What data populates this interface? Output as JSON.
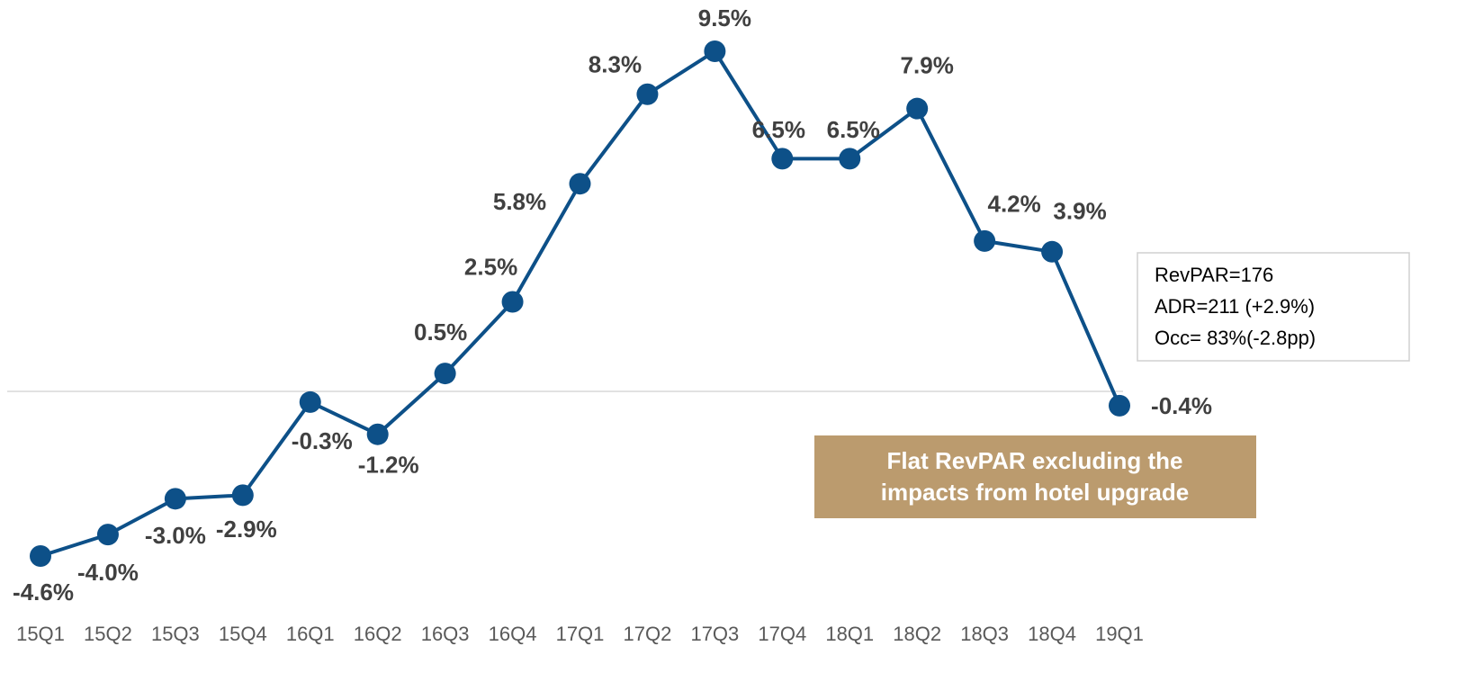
{
  "chart_data": {
    "type": "line",
    "categories": [
      "15Q1",
      "15Q2",
      "15Q3",
      "15Q4",
      "16Q1",
      "16Q2",
      "16Q3",
      "16Q4",
      "17Q1",
      "17Q2",
      "17Q3",
      "17Q4",
      "18Q1",
      "18Q2",
      "18Q3",
      "18Q4",
      "19Q1"
    ],
    "values": [
      -4.6,
      -4.0,
      -3.0,
      -2.9,
      -0.3,
      -1.2,
      0.5,
      2.5,
      5.8,
      8.3,
      9.5,
      6.5,
      6.5,
      7.9,
      4.2,
      3.9,
      -0.4
    ],
    "value_labels": [
      "-4.6%",
      "-4.0%",
      "-3.0%",
      "-2.9%",
      "-0.3%",
      "-1.2%",
      "0.5%",
      "2.5%",
      "5.8%",
      "8.3%",
      "9.5%",
      "6.5%",
      "6.5%",
      "7.9%",
      "4.2%",
      "3.9%",
      "-0.4%"
    ],
    "color": "#0d5088",
    "info_box": [
      "RevPAR=176",
      "ADR=211 (+2.9%)",
      "Occ= 83%(-2.8pp)"
    ],
    "callout": [
      "Flat RevPAR excluding the",
      "impacts from hotel upgrade"
    ]
  }
}
